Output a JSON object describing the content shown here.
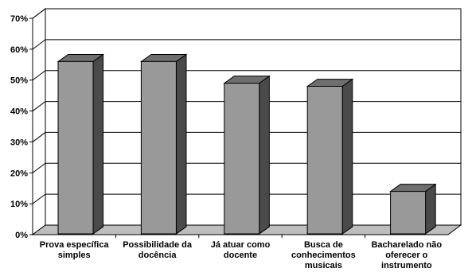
{
  "chart_data": {
    "type": "bar",
    "title": "",
    "xlabel": "",
    "ylabel": "",
    "ylim": [
      0,
      0.7
    ],
    "y_ticks": [
      {
        "value": 0.0,
        "label": "0%"
      },
      {
        "value": 0.1,
        "label": "10%"
      },
      {
        "value": 0.2,
        "label": "20%"
      },
      {
        "value": 0.3,
        "label": "30%"
      },
      {
        "value": 0.4,
        "label": "40%"
      },
      {
        "value": 0.5,
        "label": "50%"
      },
      {
        "value": 0.6,
        "label": "60%"
      },
      {
        "value": 0.7,
        "label": "70%"
      }
    ],
    "categories": [
      "Prova específica simples",
      "Possibilidade da docência",
      "Já atuar como docente",
      "Busca de conhecimentos musicais",
      "Bacharelado não oferecer o instrumento"
    ],
    "category_label_lines": [
      [
        "Prova específica",
        "simples"
      ],
      [
        "Possibilidade da",
        "docência"
      ],
      [
        "Já atuar como",
        "docente"
      ],
      [
        "Busca de",
        "conhecimentos",
        "musicais"
      ],
      [
        "Bacharelado não",
        "oferecer o",
        "instrumento"
      ]
    ],
    "values": [
      0.56,
      0.56,
      0.49,
      0.48,
      0.14
    ],
    "grid": true,
    "style": "3d",
    "colors": {
      "bar_front": "#999999",
      "bar_top": "#6e6e6e",
      "bar_side": "#4a4a4a",
      "floor": "#bdbdbd",
      "wall": "#ffffff",
      "grid": "#000000"
    }
  }
}
